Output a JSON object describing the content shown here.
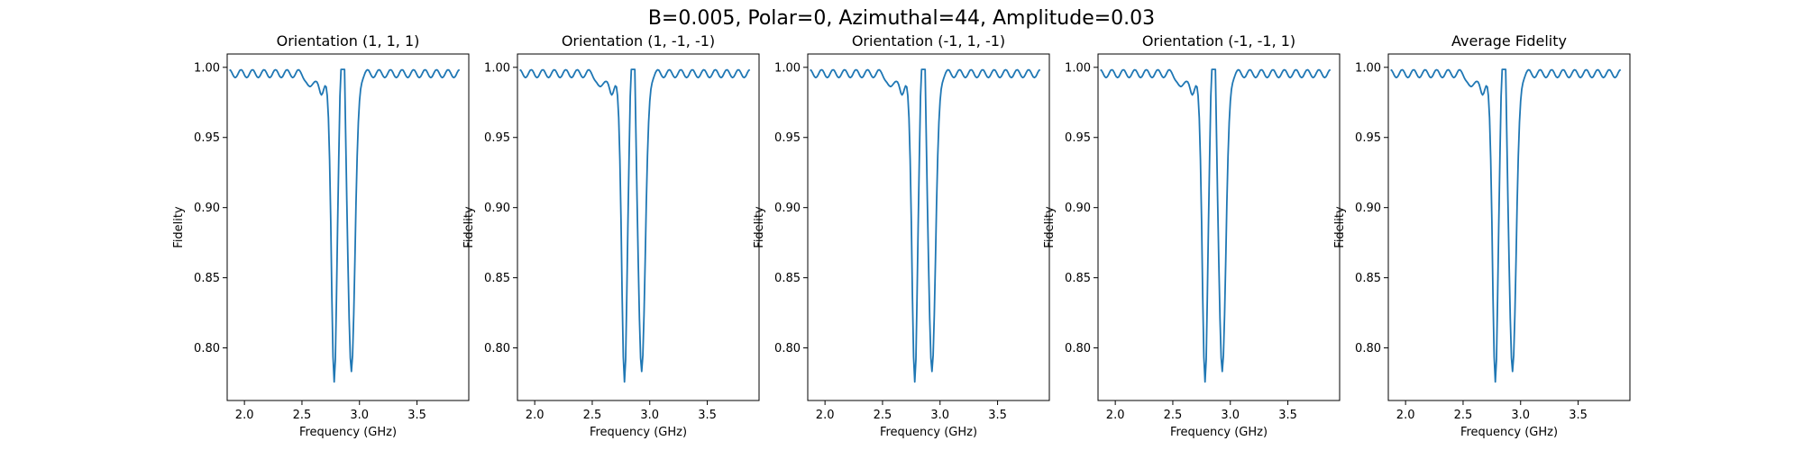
{
  "figure": {
    "suptitle": "B=0.005, Polar=0, Azimuthal=44, Amplitude=0.03"
  },
  "style": {
    "line_color": "#1f77b4",
    "axes_color": "#000000",
    "background": "#ffffff"
  },
  "chart_data": [
    {
      "type": "line",
      "title": "Orientation (1, 1, 1)",
      "xlabel": "Frequency (GHz)",
      "ylabel": "Fidelity",
      "xlim": [
        1.85,
        3.95
      ],
      "ylim": [
        0.7625,
        1.0095
      ],
      "xticks": [
        2.0,
        2.5,
        3.0,
        3.5
      ],
      "xtick_labels": [
        "2.0",
        "2.5",
        "3.0",
        "3.5"
      ],
      "yticks": [
        0.8,
        0.85,
        0.9,
        0.95,
        1.0
      ],
      "ytick_labels": [
        "0.80",
        "0.85",
        "0.90",
        "0.95",
        "1.00"
      ],
      "grid": false,
      "series": [
        {
          "values": []
        }
      ]
    },
    {
      "type": "line",
      "title": "Orientation (1, -1, -1)",
      "xlabel": "Frequency (GHz)",
      "ylabel": "Fidelity",
      "xlim": [
        1.85,
        3.95
      ],
      "ylim": [
        0.7625,
        1.0095
      ],
      "xticks": [
        2.0,
        2.5,
        3.0,
        3.5
      ],
      "xtick_labels": [
        "2.0",
        "2.5",
        "3.0",
        "3.5"
      ],
      "yticks": [
        0.8,
        0.85,
        0.9,
        0.95,
        1.0
      ],
      "ytick_labels": [
        "0.80",
        "0.85",
        "0.90",
        "0.95",
        "1.00"
      ],
      "grid": false,
      "series": [
        {
          "values": []
        }
      ]
    },
    {
      "type": "line",
      "title": "Orientation (-1, 1, -1)",
      "xlabel": "Frequency (GHz)",
      "ylabel": "Fidelity",
      "xlim": [
        1.85,
        3.95
      ],
      "ylim": [
        0.7625,
        1.0095
      ],
      "xticks": [
        2.0,
        2.5,
        3.0,
        3.5
      ],
      "xtick_labels": [
        "2.0",
        "2.5",
        "3.0",
        "3.5"
      ],
      "yticks": [
        0.8,
        0.85,
        0.9,
        0.95,
        1.0
      ],
      "ytick_labels": [
        "0.80",
        "0.85",
        "0.90",
        "0.95",
        "1.00"
      ],
      "grid": false,
      "series": [
        {
          "values": []
        }
      ]
    },
    {
      "type": "line",
      "title": "Orientation (-1, -1, 1)",
      "xlabel": "Frequency (GHz)",
      "ylabel": "Fidelity",
      "xlim": [
        1.85,
        3.95
      ],
      "ylim": [
        0.7625,
        1.0095
      ],
      "xticks": [
        2.0,
        2.5,
        3.0,
        3.5
      ],
      "xtick_labels": [
        "2.0",
        "2.5",
        "3.0",
        "3.5"
      ],
      "yticks": [
        0.8,
        0.85,
        0.9,
        0.95,
        1.0
      ],
      "ytick_labels": [
        "0.80",
        "0.85",
        "0.90",
        "0.95",
        "1.00"
      ],
      "grid": false,
      "series": [
        {
          "values": []
        }
      ]
    },
    {
      "type": "line",
      "title": "Average Fidelity",
      "xlabel": "Frequency (GHz)",
      "ylabel": "Fidelity",
      "xlim": [
        1.85,
        3.95
      ],
      "ylim": [
        0.7625,
        1.0095
      ],
      "xticks": [
        2.0,
        2.5,
        3.0,
        3.5
      ],
      "xtick_labels": [
        "2.0",
        "2.5",
        "3.0",
        "3.5"
      ],
      "yticks": [
        0.8,
        0.85,
        0.9,
        0.95,
        1.0
      ],
      "ytick_labels": [
        "0.80",
        "0.85",
        "0.90",
        "0.95",
        "1.00"
      ],
      "grid": false,
      "series": [
        {
          "values": []
        }
      ]
    }
  ]
}
